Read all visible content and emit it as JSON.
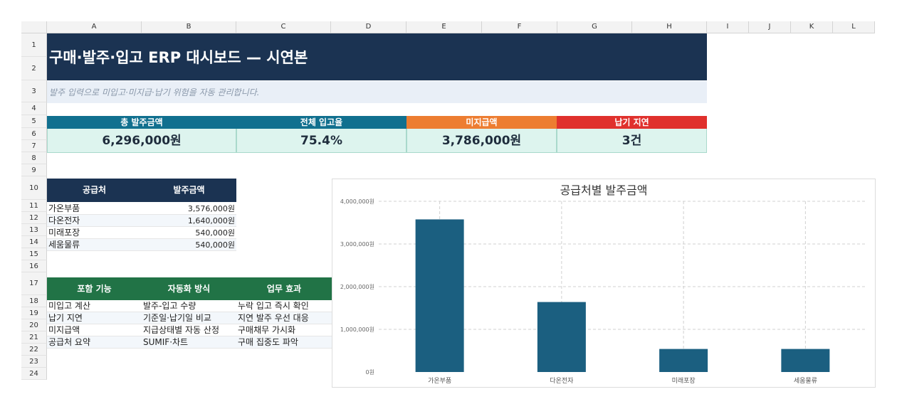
{
  "columns": [
    "A",
    "B",
    "C",
    "D",
    "E",
    "F",
    "G",
    "H",
    "I",
    "J",
    "K",
    "L"
  ],
  "rows": [
    "1",
    "2",
    "3",
    "4",
    "5",
    "6",
    "7",
    "8",
    "9",
    "10",
    "11",
    "12",
    "13",
    "14",
    "15",
    "16",
    "17",
    "18",
    "19",
    "20",
    "21",
    "22",
    "23",
    "24"
  ],
  "title": "구매·발주·입고 ERP 대시보드 — 시연본",
  "subtitle": "발주 입력으로 미입고·미지급·납기 위험을 자동 관리합니다.",
  "kpis": [
    {
      "label": "총 발주금액",
      "value": "6,296,000원",
      "color": "#11708f"
    },
    {
      "label": "전체 입고율",
      "value": "75.4%",
      "color": "#11708f"
    },
    {
      "label": "미지급액",
      "value": "3,786,000원",
      "color": "#ed7d31"
    },
    {
      "label": "납기 지연",
      "value": "3건",
      "color": "#e0312d"
    }
  ],
  "supplier_table": {
    "headers": [
      "공급처",
      "발주금액"
    ],
    "rows": [
      {
        "name": "가온부품",
        "amount": "3,576,000원"
      },
      {
        "name": "다온전자",
        "amount": "1,640,000원"
      },
      {
        "name": "미래포장",
        "amount": "540,000원"
      },
      {
        "name": "세움물류",
        "amount": "540,000원"
      }
    ]
  },
  "feature_table": {
    "headers": [
      "포함 기능",
      "자동화 방식",
      "업무 효과"
    ],
    "rows": [
      [
        "미입고 계산",
        "발주-입고 수량",
        "누락 입고 즉시 확인"
      ],
      [
        "납기 지연",
        "기준일·납기일 비교",
        "지연 발주 우선 대응"
      ],
      [
        "미지급액",
        "지급상태별 자동 산정",
        "구매채무 가시화"
      ],
      [
        "공급처 요약",
        "SUMIF·차트",
        "구매 집중도 파악"
      ]
    ]
  },
  "chart_data": {
    "type": "bar",
    "title": "공급처별 발주금액",
    "categories": [
      "가온부품",
      "다온전자",
      "미래포장",
      "세움물류"
    ],
    "values": [
      3576000,
      1640000,
      540000,
      540000
    ],
    "ylim": [
      0,
      4000000
    ],
    "yticks": [
      0,
      1000000,
      2000000,
      3000000,
      4000000
    ],
    "ytick_labels": [
      "0원",
      "1,000,000원",
      "2,000,000원",
      "3,000,000원",
      "4,000,000원"
    ],
    "bar_color": "#1b5f80",
    "grid": true
  }
}
